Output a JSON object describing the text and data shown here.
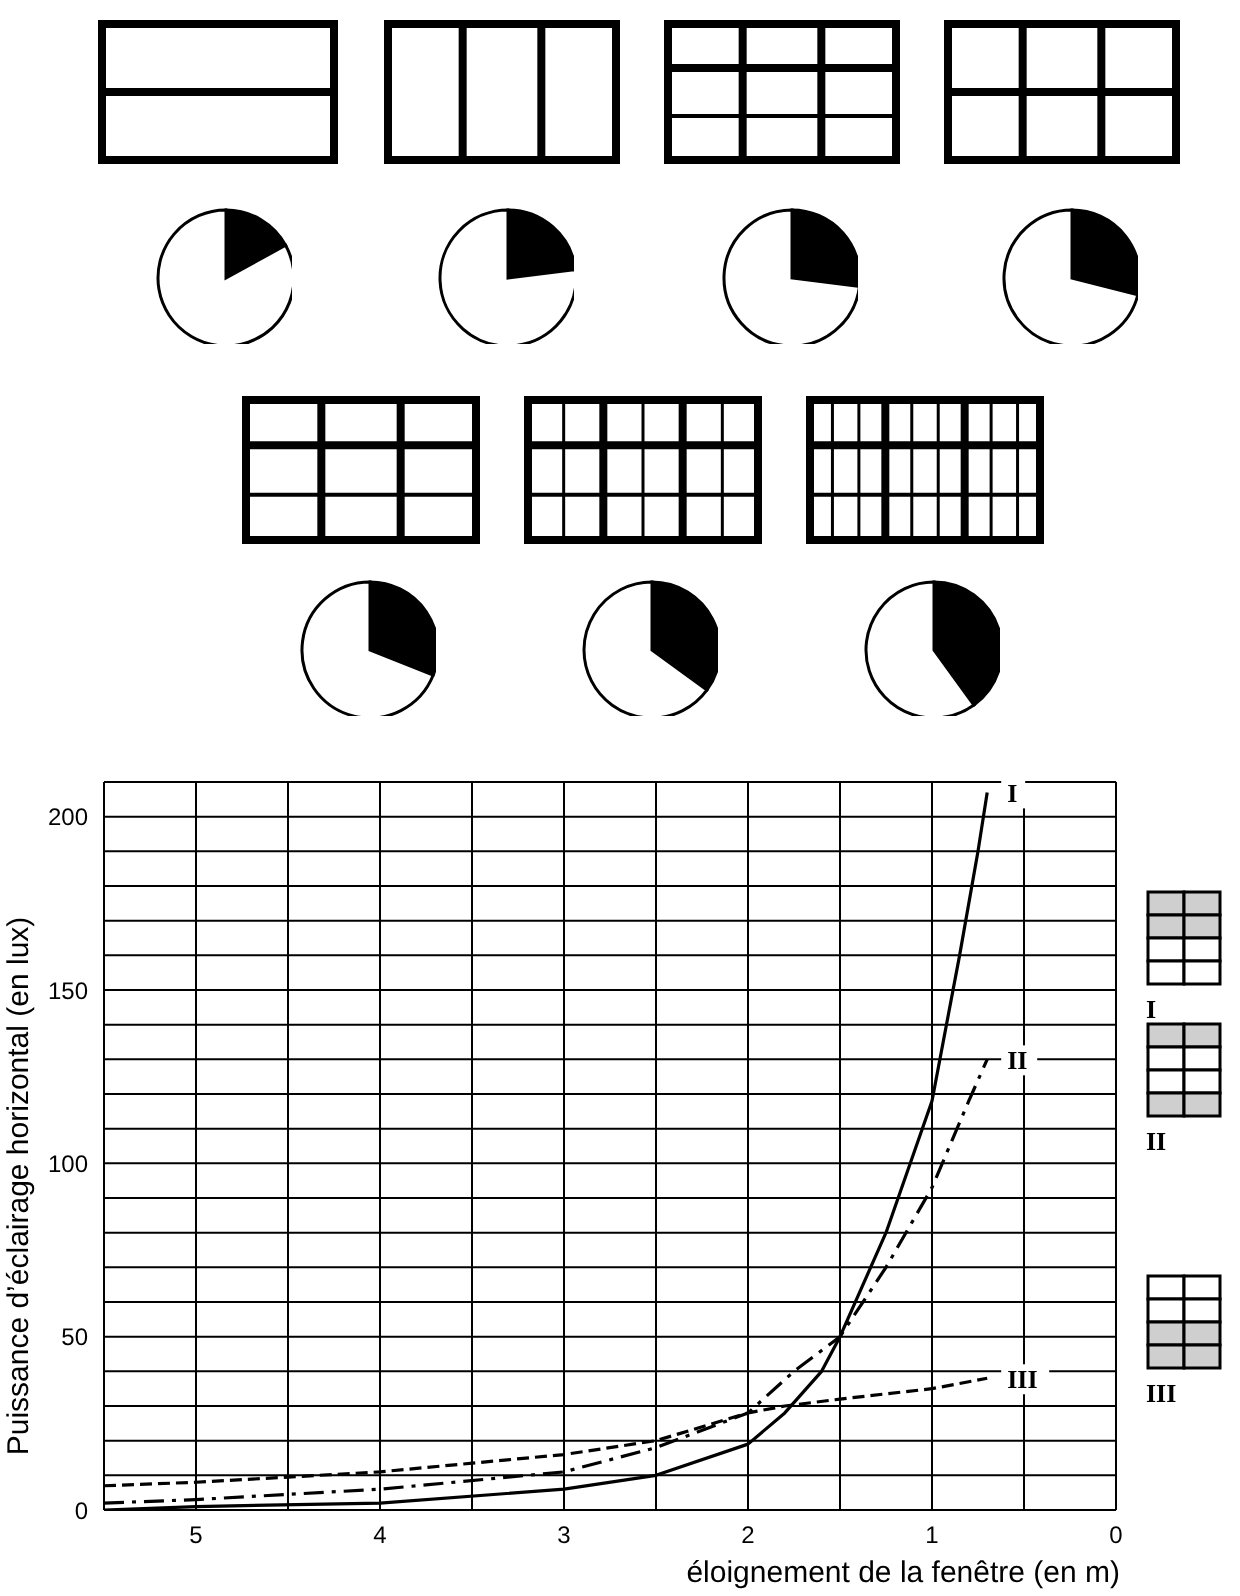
{
  "chart_data": [
    {
      "type": "pie",
      "categories": [
        null,
        null
      ],
      "values": [
        17,
        83
      ],
      "colors": [
        "#000000",
        "#ffffff"
      ],
      "legend": false
    },
    {
      "type": "pie",
      "categories": [
        null,
        null
      ],
      "values": [
        23,
        77
      ],
      "colors": [
        "#000000",
        "#ffffff"
      ],
      "legend": false
    },
    {
      "type": "pie",
      "categories": [
        null,
        null
      ],
      "values": [
        27,
        73
      ],
      "colors": [
        "#000000",
        "#ffffff"
      ],
      "legend": false
    },
    {
      "type": "pie",
      "categories": [
        null,
        null
      ],
      "values": [
        29,
        71
      ],
      "colors": [
        "#000000",
        "#ffffff"
      ],
      "legend": false
    },
    {
      "type": "pie",
      "categories": [
        null,
        null
      ],
      "values": [
        31,
        69
      ],
      "colors": [
        "#000000",
        "#ffffff"
      ],
      "legend": false
    },
    {
      "type": "pie",
      "categories": [
        null,
        null
      ],
      "values": [
        35,
        65
      ],
      "colors": [
        "#000000",
        "#ffffff"
      ],
      "legend": false
    },
    {
      "type": "pie",
      "categories": [
        null,
        null
      ],
      "values": [
        40,
        60
      ],
      "colors": [
        "#000000",
        "#ffffff"
      ],
      "legend": false
    },
    {
      "type": "line",
      "xlabel": "éloignement de la fenêtre (en m)",
      "ylabel": "Puissance d’éclairage horizontal (en lux)",
      "xlim": [
        5.5,
        0
      ],
      "ylim": [
        0,
        210
      ],
      "xticks": [
        0,
        {
          "value": 0.5,
          "label": null
        },
        1,
        {
          "value": 1.5,
          "label": null
        },
        2,
        {
          "value": 2.5,
          "label": null
        },
        3,
        {
          "value": 3.5,
          "label": null
        },
        4,
        {
          "value": 4.5,
          "label": null
        },
        5,
        {
          "value": 5.5,
          "label": null
        }
      ],
      "yticks": [
        0,
        {
          "value": 10,
          "label": null
        },
        {
          "value": 20,
          "label": null
        },
        {
          "value": 30,
          "label": null
        },
        {
          "value": 40,
          "label": null
        },
        50,
        {
          "value": 60,
          "label": null
        },
        {
          "value": 70,
          "label": null
        },
        {
          "value": 80,
          "label": null
        },
        {
          "value": 90,
          "label": null
        },
        100,
        {
          "value": 110,
          "label": null
        },
        {
          "value": 120,
          "label": null
        },
        {
          "value": 130,
          "label": null
        },
        {
          "value": 140,
          "label": null
        },
        150,
        {
          "value": 160,
          "label": null
        },
        {
          "value": 170,
          "label": null
        },
        {
          "value": 180,
          "label": null
        },
        {
          "value": 190,
          "label": null
        },
        200,
        {
          "value": 210,
          "label": null
        }
      ],
      "grid": true,
      "legend": "right",
      "marker": "none",
      "series": [
        {
          "name": "I",
          "color": "#000000",
          "line_style": "solid",
          "x": [
            5.5,
            5,
            4,
            3,
            2.5,
            2,
            1.8,
            1.6,
            1.5,
            1.25,
            1,
            0.85,
            0.75,
            0.7
          ],
          "values": [
            0,
            1,
            2,
            6,
            10,
            19,
            28,
            40,
            50,
            80,
            118,
            160,
            190,
            207
          ]
        },
        {
          "name": "II",
          "color": "#000000",
          "line_style": "dashdot",
          "x": [
            5.5,
            5,
            4,
            3,
            2.5,
            2,
            1.75,
            1.5,
            1.25,
            1,
            0.8,
            0.7
          ],
          "values": [
            2,
            3,
            6,
            11,
            18,
            28,
            40,
            50,
            70,
            93,
            118,
            130
          ]
        },
        {
          "name": "III",
          "color": "#000000",
          "line_style": "dashed",
          "x": [
            5.5,
            5,
            4,
            3,
            2.5,
            2,
            1.8,
            1.5,
            1,
            0.7
          ],
          "values": [
            7,
            8,
            11,
            16,
            20,
            28,
            30,
            32,
            35,
            38
          ]
        }
      ]
    }
  ]
}
